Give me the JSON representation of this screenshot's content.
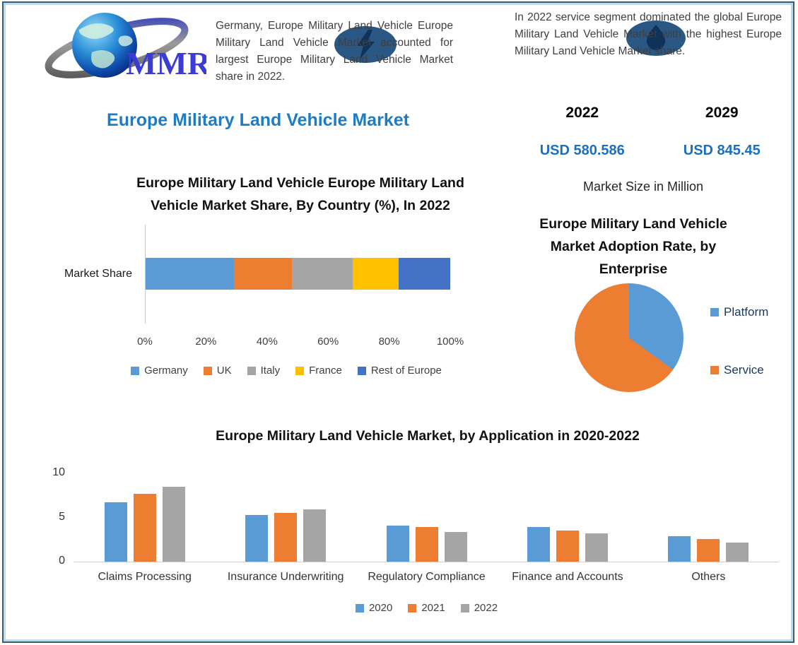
{
  "header": {
    "logo_text": "MMR",
    "note_left": "Germany, Europe Military Land Vehicle Europe Military Land Vehicle Market accounted for largest Europe Military Land Vehicle Market share in 2022.",
    "note_right": "In 2022 service segment dominated the global Europe Military Land Vehicle Market with the highest Europe Military Land Vehicle Market share."
  },
  "title": "Europe Military Land Vehicle Market",
  "forecast": {
    "year_start": "2022",
    "year_end": "2029",
    "value_start": "USD 580.586",
    "value_end": "USD 845.45",
    "caption": "Market Size in Million"
  },
  "icons": [
    "mmr-globe-logo",
    "lightning-watermark",
    "flame-watermark"
  ],
  "colors": {
    "accent_blue": "#1e7cc4",
    "value_blue": "#1b6fbd",
    "watermark_navy": "#2a5783",
    "frame_teal": "#30607a",
    "series_blue": "#5B9BD5",
    "series_orange": "#ED7D31",
    "series_gray": "#A5A5A5",
    "series_yellow": "#FFC000",
    "series_darkblue": "#4472C4"
  },
  "chart_data": [
    {
      "id": "country_share",
      "type": "bar",
      "variant": "stacked-horizontal",
      "title": "Europe Military Land Vehicle Europe Military Land Vehicle Market Share, By Country (%), In 2022",
      "category": "Market Share",
      "x_ticks": [
        "0%",
        "20%",
        "40%",
        "60%",
        "80%",
        "100%"
      ],
      "xlim": [
        0,
        100
      ],
      "grid": false,
      "legend_position": "bottom",
      "series": [
        {
          "name": "Germany",
          "value": 29,
          "color": "#5B9BD5"
        },
        {
          "name": "UK",
          "value": 19,
          "color": "#ED7D31"
        },
        {
          "name": "Italy",
          "value": 20,
          "color": "#A5A5A5"
        },
        {
          "name": "France",
          "value": 15,
          "color": "#FFC000"
        },
        {
          "name": "Rest of Europe",
          "value": 17,
          "color": "#4472C4"
        }
      ]
    },
    {
      "id": "adoption_rate",
      "type": "pie",
      "title": "Europe Military Land Vehicle Market Adoption Rate, by Enterprise",
      "legend_position": "right",
      "slices": [
        {
          "name": "Platform",
          "value": 35,
          "color": "#5B9BD5"
        },
        {
          "name": "Service",
          "value": 65,
          "color": "#ED7D31"
        }
      ]
    },
    {
      "id": "by_application",
      "type": "bar",
      "variant": "grouped-vertical",
      "title": "Europe Military Land Vehicle Market, by Application in 2020-2022",
      "categories": [
        "Claims Processing",
        "Insurance Underwriting",
        "Regulatory Compliance",
        "Finance and Accounts",
        "Others"
      ],
      "series": [
        {
          "name": "2020",
          "color": "#5B9BD5",
          "values": [
            6.7,
            5.3,
            4.1,
            3.9,
            2.9
          ]
        },
        {
          "name": "2021",
          "color": "#ED7D31",
          "values": [
            7.7,
            5.5,
            3.9,
            3.5,
            2.6
          ]
        },
        {
          "name": "2022",
          "color": "#A5A5A5",
          "values": [
            8.5,
            5.9,
            3.4,
            3.2,
            2.2
          ]
        }
      ],
      "y_ticks": [
        0,
        5,
        10
      ],
      "ylim": [
        0,
        10
      ],
      "grid": false,
      "legend_position": "bottom"
    }
  ]
}
